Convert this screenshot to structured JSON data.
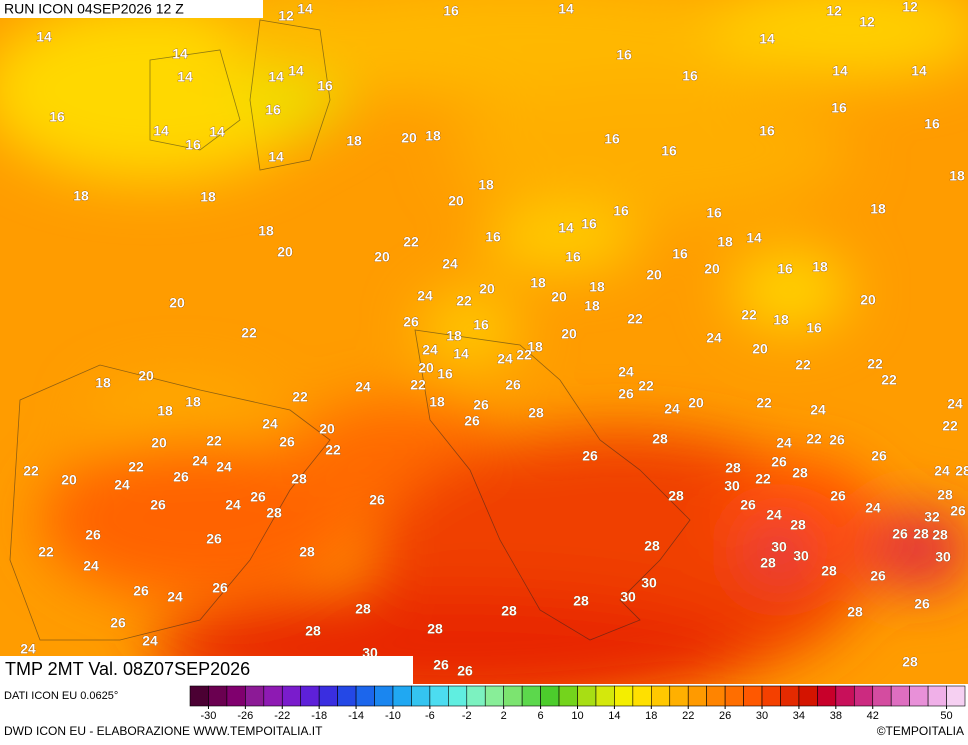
{
  "header": {
    "run": "RUN ICON 04SEP2026 12 Z"
  },
  "field": {
    "title": "TMP 2MT Val. 08Z07SEP2026"
  },
  "source": "DATI ICON EU 0.0625°",
  "colorbar": {
    "lim": [
      -32,
      52
    ],
    "ticks": [
      -30,
      -26,
      -22,
      -18,
      -14,
      -10,
      -6,
      -2,
      2,
      6,
      10,
      14,
      18,
      22,
      26,
      30,
      34,
      38,
      42,
      50
    ],
    "colors": [
      "#4b0033",
      "#6a0050",
      "#80006e",
      "#8c1a96",
      "#8e1ab3",
      "#7a1ccc",
      "#5e20d9",
      "#3a2ee0",
      "#2448e6",
      "#1c66ec",
      "#1a86f0",
      "#20a8f2",
      "#34c4f0",
      "#4cdcf0",
      "#60eee0",
      "#7cf2c0",
      "#88ee98",
      "#7ce470",
      "#5cd84c",
      "#4ccc2c",
      "#74d41c",
      "#a8de14",
      "#d4e80c",
      "#f4ee00",
      "#ffe000",
      "#ffc800",
      "#ffb000",
      "#ff9a00",
      "#ff8400",
      "#ff6e00",
      "#ff5800",
      "#f44000",
      "#e42a00",
      "#d41400",
      "#c8002a",
      "#c8105a",
      "#cc2a80",
      "#d44ca0",
      "#de6ec0",
      "#e890d8",
      "#f0b0e8",
      "#f6d0f2"
    ]
  },
  "footer": {
    "left": "DWD ICON EU - ELABORAZIONE WWW.TEMPOITALIA.IT",
    "right": "©TEMPOITALIA"
  },
  "map_labels": [
    12,
    14,
    16,
    14,
    12,
    12,
    12,
    14,
    14,
    14,
    14,
    14,
    16,
    16,
    14,
    16,
    14,
    14,
    16,
    16,
    14,
    14,
    16,
    14,
    18,
    20,
    18,
    16,
    16,
    16,
    16,
    16,
    18,
    18,
    18,
    20,
    16,
    16,
    18,
    18,
    18,
    20,
    22,
    20,
    16,
    14,
    16,
    18,
    14,
    16,
    24,
    20,
    16,
    20,
    16,
    18,
    20,
    24,
    22,
    20,
    18,
    20,
    18,
    18,
    20,
    22,
    26,
    18,
    16,
    20,
    22,
    22,
    18,
    16,
    24,
    24,
    14,
    18,
    24,
    22,
    20,
    22,
    22,
    18,
    20,
    20,
    16,
    22,
    24,
    26,
    24,
    22,
    22,
    18,
    18,
    22,
    18,
    26,
    26,
    24,
    20,
    22,
    24,
    24,
    24,
    20,
    26,
    28,
    22,
    20,
    22,
    26,
    22,
    28,
    24,
    22,
    26,
    24,
    22,
    24,
    26,
    28,
    26,
    26,
    28,
    28,
    26,
    24,
    28,
    22,
    20,
    24,
    30,
    22,
    26,
    24,
    26,
    28,
    26,
    28,
    26,
    24,
    28,
    26,
    24,
    28,
    32,
    26,
    26,
    26,
    28,
    30,
    30,
    26,
    28,
    28,
    22,
    24,
    28,
    28,
    30,
    26,
    24,
    26,
    30,
    28,
    26,
    28,
    28,
    28,
    30,
    28,
    26,
    26,
    24,
    28,
    28,
    24,
    30,
    26,
    26,
    28
  ]
}
